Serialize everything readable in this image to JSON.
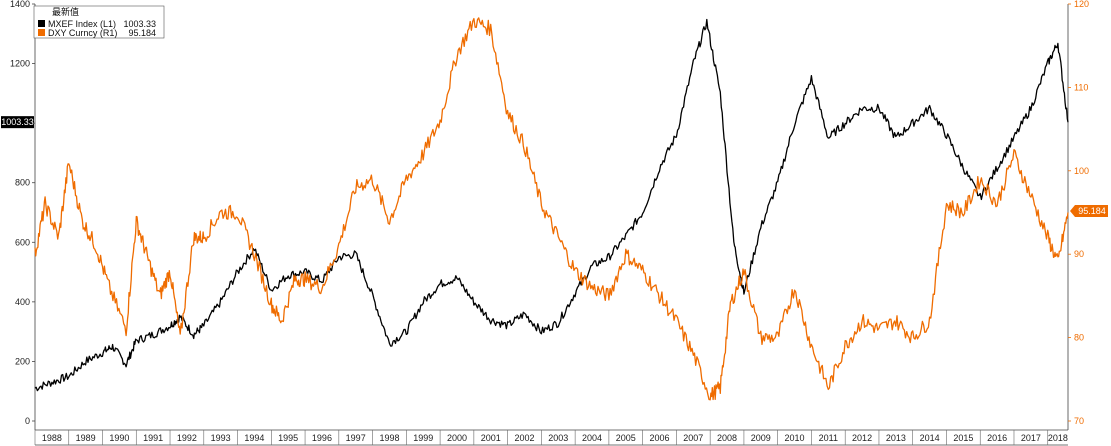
{
  "chart_data": {
    "type": "line",
    "legend": {
      "header": "最新值",
      "position": "top-left",
      "entries": [
        {
          "name": "MXEF Index  (L1)",
          "value": "1003.33"
        },
        {
          "name": "DXY Curncy  (R1)",
          "value": "95.184"
        }
      ]
    },
    "x_categories": [
      "1988",
      "1989",
      "1990",
      "1991",
      "1992",
      "1993",
      "1994",
      "1995",
      "1996",
      "1997",
      "1998",
      "1999",
      "2000",
      "2001",
      "2002",
      "2003",
      "2004",
      "2005",
      "2006",
      "2007",
      "2008",
      "2009",
      "2010",
      "2011",
      "2012",
      "2013",
      "2014",
      "2015",
      "2016",
      "2017",
      "2018"
    ],
    "xlim": [
      1988.0,
      2018.6
    ],
    "y_left": {
      "ylim": [
        0,
        1400
      ],
      "ticks": [
        0,
        200,
        400,
        600,
        800,
        1000,
        1200,
        1400
      ]
    },
    "y_right": {
      "ylim": [
        70,
        120
      ],
      "ticks": [
        70,
        80,
        90,
        100,
        110,
        120
      ]
    },
    "grid": false,
    "series": [
      {
        "name": "MXEF Index  (L1)",
        "axis": "left",
        "color": "#000000",
        "last_label": "1003.33",
        "x": [
          1988.0,
          1988.5,
          1989.0,
          1989.5,
          1990.0,
          1990.3,
          1990.7,
          1991.0,
          1991.5,
          1992.0,
          1992.3,
          1992.7,
          1993.0,
          1993.5,
          1994.0,
          1994.5,
          1995.0,
          1995.5,
          1996.0,
          1996.5,
          1997.0,
          1997.5,
          1998.0,
          1998.5,
          1999.0,
          1999.5,
          2000.0,
          2000.5,
          2001.0,
          2001.5,
          2002.0,
          2002.5,
          2003.0,
          2003.5,
          2004.0,
          2004.5,
          2005.0,
          2005.5,
          2006.0,
          2006.5,
          2007.0,
          2007.5,
          2007.9,
          2008.3,
          2008.7,
          2009.0,
          2009.5,
          2010.0,
          2010.5,
          2011.0,
          2011.5,
          2012.0,
          2012.5,
          2013.0,
          2013.5,
          2014.0,
          2014.5,
          2015.0,
          2015.5,
          2016.0,
          2016.5,
          2017.0,
          2017.5,
          2018.0,
          2018.3,
          2018.6
        ],
        "y": [
          110,
          130,
          150,
          200,
          230,
          250,
          190,
          270,
          290,
          320,
          350,
          290,
          320,
          400,
          500,
          580,
          440,
          490,
          500,
          470,
          550,
          560,
          420,
          260,
          300,
          400,
          460,
          480,
          400,
          340,
          320,
          360,
          300,
          330,
          430,
          520,
          550,
          620,
          700,
          850,
          960,
          1200,
          1340,
          1100,
          600,
          430,
          650,
          800,
          1000,
          1150,
          950,
          1000,
          1050,
          1050,
          950,
          1000,
          1050,
          960,
          850,
          750,
          850,
          950,
          1050,
          1200,
          1270,
          1003
        ]
      },
      {
        "name": "DXY Curncy  (R1)",
        "axis": "right",
        "color": "#ef6c00",
        "last_label": "95.184",
        "x": [
          1988.0,
          1988.3,
          1988.7,
          1989.0,
          1989.4,
          1989.8,
          1990.2,
          1990.7,
          1991.0,
          1991.3,
          1991.7,
          1992.0,
          1992.3,
          1992.7,
          1993.0,
          1993.5,
          1994.0,
          1994.5,
          1995.0,
          1995.3,
          1995.7,
          1996.0,
          1996.5,
          1997.0,
          1997.5,
          1998.0,
          1998.5,
          1999.0,
          1999.5,
          2000.0,
          2000.5,
          2001.0,
          2001.5,
          2002.0,
          2002.5,
          2003.0,
          2003.5,
          2004.0,
          2004.5,
          2005.0,
          2005.5,
          2006.0,
          2006.5,
          2007.0,
          2007.5,
          2008.0,
          2008.3,
          2008.6,
          2009.0,
          2009.5,
          2010.0,
          2010.5,
          2011.0,
          2011.5,
          2012.0,
          2012.5,
          2013.0,
          2013.5,
          2014.0,
          2014.5,
          2015.0,
          2015.5,
          2016.0,
          2016.5,
          2017.0,
          2017.5,
          2018.0,
          2018.3,
          2018.6
        ],
        "y": [
          90,
          96,
          92,
          101,
          94,
          91,
          86,
          81,
          94,
          90,
          85,
          88,
          80,
          92,
          92,
          95,
          95,
          90,
          84,
          82,
          87,
          87,
          86,
          91,
          98,
          99,
          94,
          99,
          102,
          106,
          114,
          118,
          117,
          107,
          103,
          96,
          92,
          88,
          86,
          85,
          90,
          88,
          85,
          82,
          78,
          73,
          74,
          84,
          88,
          80,
          80,
          86,
          79,
          74,
          79,
          82,
          81,
          82,
          80,
          82,
          96,
          95,
          99,
          96,
          102,
          97,
          92,
          89,
          95
        ]
      }
    ]
  }
}
